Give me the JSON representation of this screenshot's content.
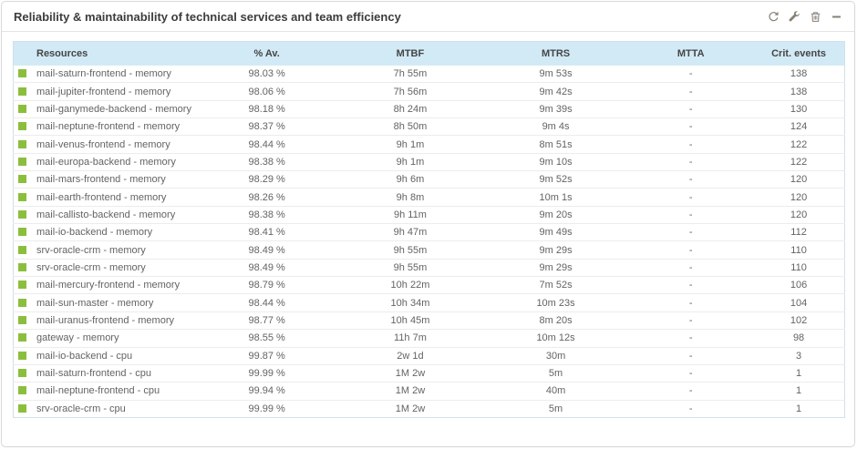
{
  "widget": {
    "title": "Reliability & maintainability of technical services and team efficiency",
    "toolbar": {
      "refresh_label": "refresh",
      "settings_label": "settings",
      "delete_label": "delete",
      "minimize_label": "minimize"
    }
  },
  "colors": {
    "header_bg": "#d2eaf6",
    "status_ok": "#8cbe3e",
    "table_border": "#cfe0ea",
    "icon_gray": "#878078",
    "title_text": "#3c3c3c",
    "row_text": "#636363"
  },
  "table": {
    "columns": [
      "Resources",
      "% Av.",
      "MTBF",
      "MTRS",
      "MTTA",
      "Crit. events"
    ],
    "rows": [
      {
        "status": "ok",
        "resource": "mail-saturn-frontend - memory",
        "availability": "98.03 %",
        "mtbf": "7h 55m",
        "mtrs": "9m 53s",
        "mtta": "-",
        "crit_events": "138"
      },
      {
        "status": "ok",
        "resource": "mail-jupiter-frontend - memory",
        "availability": "98.06 %",
        "mtbf": "7h 56m",
        "mtrs": "9m 42s",
        "mtta": "-",
        "crit_events": "138"
      },
      {
        "status": "ok",
        "resource": "mail-ganymede-backend - memory",
        "availability": "98.18 %",
        "mtbf": "8h 24m",
        "mtrs": "9m 39s",
        "mtta": "-",
        "crit_events": "130"
      },
      {
        "status": "ok",
        "resource": "mail-neptune-frontend - memory",
        "availability": "98.37 %",
        "mtbf": "8h 50m",
        "mtrs": "9m 4s",
        "mtta": "-",
        "crit_events": "124"
      },
      {
        "status": "ok",
        "resource": "mail-venus-frontend - memory",
        "availability": "98.44 %",
        "mtbf": "9h 1m",
        "mtrs": "8m 51s",
        "mtta": "-",
        "crit_events": "122"
      },
      {
        "status": "ok",
        "resource": "mail-europa-backend - memory",
        "availability": "98.38 %",
        "mtbf": "9h 1m",
        "mtrs": "9m 10s",
        "mtta": "-",
        "crit_events": "122"
      },
      {
        "status": "ok",
        "resource": "mail-mars-frontend - memory",
        "availability": "98.29 %",
        "mtbf": "9h 6m",
        "mtrs": "9m 52s",
        "mtta": "-",
        "crit_events": "120"
      },
      {
        "status": "ok",
        "resource": "mail-earth-frontend - memory",
        "availability": "98.26 %",
        "mtbf": "9h 8m",
        "mtrs": "10m 1s",
        "mtta": "-",
        "crit_events": "120"
      },
      {
        "status": "ok",
        "resource": "mail-callisto-backend - memory",
        "availability": "98.38 %",
        "mtbf": "9h 11m",
        "mtrs": "9m 20s",
        "mtta": "-",
        "crit_events": "120"
      },
      {
        "status": "ok",
        "resource": "mail-io-backend - memory",
        "availability": "98.41 %",
        "mtbf": "9h 47m",
        "mtrs": "9m 49s",
        "mtta": "-",
        "crit_events": "112"
      },
      {
        "status": "ok",
        "resource": "srv-oracle-crm - memory",
        "availability": "98.49 %",
        "mtbf": "9h 55m",
        "mtrs": "9m 29s",
        "mtta": "-",
        "crit_events": "110"
      },
      {
        "status": "ok",
        "resource": "srv-oracle-crm - memory",
        "availability": "98.49 %",
        "mtbf": "9h 55m",
        "mtrs": "9m 29s",
        "mtta": "-",
        "crit_events": "110"
      },
      {
        "status": "ok",
        "resource": "mail-mercury-frontend - memory",
        "availability": "98.79 %",
        "mtbf": "10h 22m",
        "mtrs": "7m 52s",
        "mtta": "-",
        "crit_events": "106"
      },
      {
        "status": "ok",
        "resource": "mail-sun-master - memory",
        "availability": "98.44 %",
        "mtbf": "10h 34m",
        "mtrs": "10m 23s",
        "mtta": "-",
        "crit_events": "104"
      },
      {
        "status": "ok",
        "resource": "mail-uranus-frontend - memory",
        "availability": "98.77 %",
        "mtbf": "10h 45m",
        "mtrs": "8m 20s",
        "mtta": "-",
        "crit_events": "102"
      },
      {
        "status": "ok",
        "resource": "gateway - memory",
        "availability": "98.55 %",
        "mtbf": "11h 7m",
        "mtrs": "10m 12s",
        "mtta": "-",
        "crit_events": "98"
      },
      {
        "status": "ok",
        "resource": "mail-io-backend - cpu",
        "availability": "99.87 %",
        "mtbf": "2w 1d",
        "mtrs": "30m",
        "mtta": "-",
        "crit_events": "3"
      },
      {
        "status": "ok",
        "resource": "mail-saturn-frontend - cpu",
        "availability": "99.99 %",
        "mtbf": "1M 2w",
        "mtrs": "5m",
        "mtta": "-",
        "crit_events": "1"
      },
      {
        "status": "ok",
        "resource": "mail-neptune-frontend - cpu",
        "availability": "99.94 %",
        "mtbf": "1M 2w",
        "mtrs": "40m",
        "mtta": "-",
        "crit_events": "1"
      },
      {
        "status": "ok",
        "resource": "srv-oracle-crm - cpu",
        "availability": "99.99 %",
        "mtbf": "1M 2w",
        "mtrs": "5m",
        "mtta": "-",
        "crit_events": "1"
      }
    ]
  }
}
